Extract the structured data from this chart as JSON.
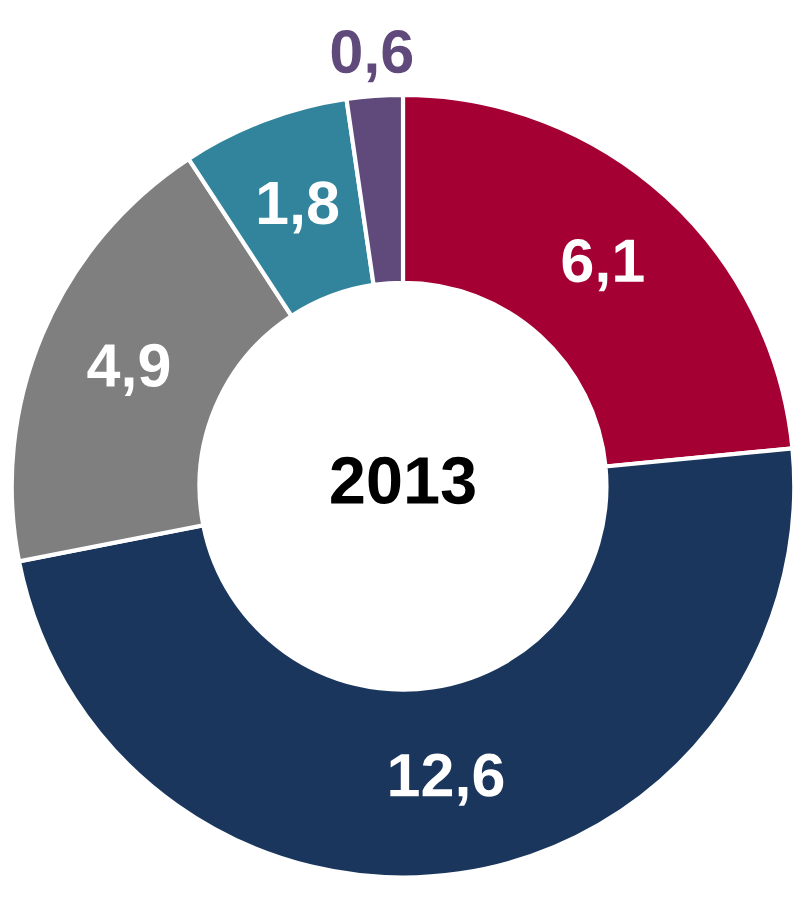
{
  "chart_data": {
    "type": "donut",
    "title": "2013",
    "categories": [
      null,
      null,
      null,
      null,
      null
    ],
    "values": [
      6.1,
      12.6,
      4.9,
      1.8,
      0.6
    ],
    "value_labels": [
      "6,1",
      "12,6",
      "4,9",
      "1,8",
      "0,6"
    ],
    "colors": [
      "#a50034",
      "#1b365d",
      "#7f7f7f",
      "#31849b",
      "#604a7b"
    ],
    "legend": false
  }
}
